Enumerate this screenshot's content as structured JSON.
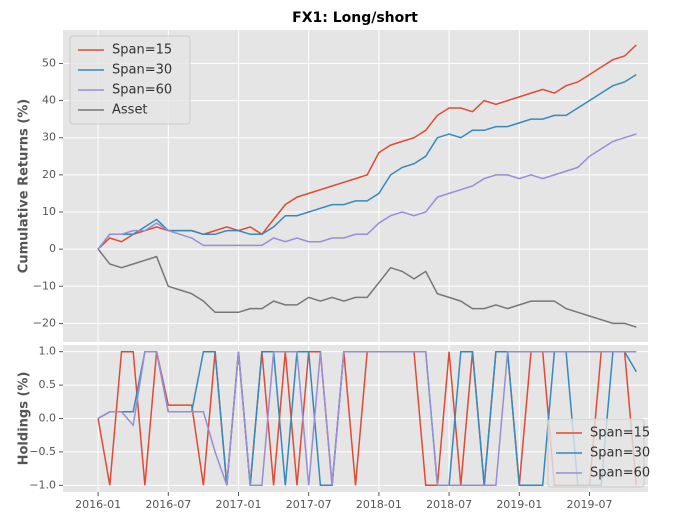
{
  "chart_data": [
    {
      "type": "line",
      "title": "FX1: Long/short",
      "ylabel": "Cumulative Returns (%)",
      "xlim": [
        "2015-10",
        "2019-12"
      ],
      "ylim": [
        -25,
        59
      ],
      "yticks": [
        {
          "value": -20,
          "label": "−20"
        },
        {
          "value": -10,
          "label": "−10"
        },
        0,
        10,
        20,
        30,
        40,
        50
      ],
      "grid": true,
      "legend": "upper left",
      "x": [
        "2016-01",
        "2016-02",
        "2016-03",
        "2016-04",
        "2016-05",
        "2016-06",
        "2016-07",
        "2016-08",
        "2016-09",
        "2016-10",
        "2016-11",
        "2016-12",
        "2017-01",
        "2017-02",
        "2017-03",
        "2017-04",
        "2017-05",
        "2017-06",
        "2017-07",
        "2017-08",
        "2017-09",
        "2017-10",
        "2017-11",
        "2017-12",
        "2018-01",
        "2018-02",
        "2018-03",
        "2018-04",
        "2018-05",
        "2018-06",
        "2018-07",
        "2018-08",
        "2018-09",
        "2018-10",
        "2018-11",
        "2018-12",
        "2019-01",
        "2019-02",
        "2019-03",
        "2019-04",
        "2019-05",
        "2019-06",
        "2019-07",
        "2019-08",
        "2019-09",
        "2019-10",
        "2019-11"
      ],
      "series": [
        {
          "name": "Span=15",
          "color": "#e24a33",
          "values": [
            0,
            3,
            2,
            4,
            5,
            6,
            5,
            5,
            5,
            4,
            5,
            6,
            5,
            6,
            4,
            8,
            12,
            14,
            15,
            16,
            17,
            18,
            19,
            20,
            26,
            28,
            29,
            30,
            32,
            36,
            38,
            38,
            37,
            40,
            39,
            40,
            41,
            42,
            43,
            42,
            44,
            45,
            47,
            49,
            51,
            52,
            55
          ]
        },
        {
          "name": "Span=30",
          "color": "#348abd",
          "values": [
            0,
            4,
            4,
            4,
            6,
            8,
            5,
            5,
            5,
            4,
            4,
            5,
            5,
            4,
            4,
            6,
            9,
            9,
            10,
            11,
            12,
            12,
            13,
            13,
            15,
            20,
            22,
            23,
            25,
            30,
            31,
            30,
            32,
            32,
            33,
            33,
            34,
            35,
            35,
            36,
            36,
            38,
            40,
            42,
            44,
            45,
            47
          ]
        },
        {
          "name": "Span=60",
          "color": "#988ed5",
          "values": [
            0,
            4,
            4,
            5,
            5,
            7,
            5,
            4,
            3,
            1,
            1,
            1,
            1,
            1,
            1,
            3,
            2,
            3,
            2,
            2,
            3,
            3,
            4,
            4,
            7,
            9,
            10,
            9,
            10,
            14,
            15,
            16,
            17,
            19,
            20,
            20,
            19,
            20,
            19,
            20,
            21,
            22,
            25,
            27,
            29,
            30,
            31
          ]
        },
        {
          "name": "Asset",
          "color": "#777777",
          "values": [
            0,
            -4,
            -5,
            -4,
            -3,
            -2,
            -10,
            -11,
            -12,
            -14,
            -17,
            -17,
            -17,
            -16,
            -16,
            -14,
            -15,
            -15,
            -13,
            -14,
            -13,
            -14,
            -13,
            -13,
            -9,
            -5,
            -6,
            -8,
            -6,
            -12,
            -13,
            -14,
            -16,
            -16,
            -15,
            -16,
            -15,
            -14,
            -14,
            -14,
            -16,
            -17,
            -18,
            -19,
            -20,
            -20,
            -21
          ]
        }
      ]
    },
    {
      "type": "line",
      "ylabel": "Holdings (%)",
      "xlim": [
        "2015-10",
        "2019-12"
      ],
      "xticks": [
        "2016-01",
        "2016-07",
        "2017-01",
        "2017-07",
        "2018-01",
        "2018-07",
        "2019-01",
        "2019-07"
      ],
      "ylim": [
        -1.1,
        1.1
      ],
      "yticks": [
        {
          "value": -1,
          "label": "−1.0"
        },
        {
          "value": -0.5,
          "label": "−0.5"
        },
        {
          "value": 0,
          "label": "0.0"
        },
        0.5,
        {
          "value": 1,
          "label": "1.0"
        }
      ],
      "grid": true,
      "legend": "lower right",
      "x": [
        "2016-01",
        "2016-02",
        "2016-03",
        "2016-04",
        "2016-05",
        "2016-06",
        "2016-07",
        "2016-08",
        "2016-09",
        "2016-10",
        "2016-11",
        "2016-12",
        "2017-01",
        "2017-02",
        "2017-03",
        "2017-04",
        "2017-05",
        "2017-06",
        "2017-07",
        "2017-08",
        "2017-09",
        "2017-10",
        "2017-11",
        "2017-12",
        "2018-01",
        "2018-02",
        "2018-03",
        "2018-04",
        "2018-05",
        "2018-06",
        "2018-07",
        "2018-08",
        "2018-09",
        "2018-10",
        "2018-11",
        "2018-12",
        "2019-01",
        "2019-02",
        "2019-03",
        "2019-04",
        "2019-05",
        "2019-06",
        "2019-07",
        "2019-08",
        "2019-09",
        "2019-10",
        "2019-11"
      ],
      "series": [
        {
          "name": "Span=15",
          "color": "#e24a33",
          "values": [
            0,
            -1,
            1,
            1,
            -1,
            1,
            0.2,
            0.2,
            0.2,
            -1,
            1,
            -1,
            1,
            -1,
            1,
            -1,
            1,
            -1,
            1,
            1,
            -1,
            1,
            -1,
            1,
            1,
            1,
            1,
            1,
            -1,
            -1,
            1,
            -1,
            1,
            -1,
            1,
            1,
            -1,
            1,
            1,
            -1,
            -1,
            -1,
            -1,
            1,
            1,
            1,
            -1
          ]
        },
        {
          "name": "Span=30",
          "color": "#348abd",
          "values": [
            0,
            0.1,
            0.1,
            0.1,
            1,
            1,
            0.1,
            0.1,
            0.1,
            1,
            1,
            -1,
            1,
            -1,
            1,
            1,
            -1,
            1,
            1,
            -1,
            -1,
            1,
            1,
            1,
            1,
            1,
            1,
            1,
            1,
            -1,
            -1,
            1,
            1,
            -1,
            1,
            1,
            -1,
            -1,
            -1,
            1,
            1,
            -1,
            -1,
            -1,
            1,
            1,
            0.7
          ]
        },
        {
          "name": "Span=60",
          "color": "#988ed5",
          "values": [
            0,
            0.1,
            0.1,
            -0.1,
            1,
            1,
            0.1,
            0.1,
            0.1,
            0.1,
            -0.5,
            -1,
            1,
            -1,
            -1,
            1,
            1,
            1,
            -1,
            1,
            -1,
            1,
            1,
            1,
            1,
            1,
            1,
            1,
            1,
            -1,
            -1,
            -1,
            -1,
            -1,
            -1,
            1,
            1,
            1,
            1,
            1,
            1,
            1,
            1,
            1,
            1,
            1,
            1
          ]
        }
      ]
    }
  ]
}
